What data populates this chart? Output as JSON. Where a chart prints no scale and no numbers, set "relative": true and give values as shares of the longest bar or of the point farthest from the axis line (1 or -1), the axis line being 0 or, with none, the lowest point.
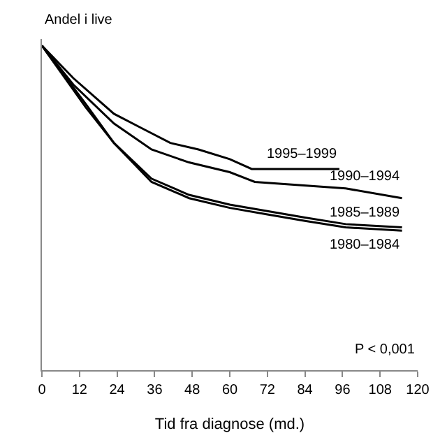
{
  "chart_data": {
    "type": "line",
    "relative": true,
    "ylabel": "Andel i live",
    "xlabel": "Tid fra diagnose (md.)",
    "xlim": [
      0,
      120
    ],
    "xticks": [
      0,
      12,
      24,
      36,
      48,
      60,
      72,
      84,
      96,
      108,
      120
    ],
    "tick_labels": "x",
    "legend": false,
    "marker": "none",
    "line_style": "solid",
    "annotations": [
      "P < 0,001"
    ],
    "series": [
      {
        "name": "1995–1999",
        "color": "#000000",
        "x": [
          0,
          10,
          23,
          31,
          41,
          50,
          60,
          67,
          95
        ],
        "values": [
          1.0,
          0.9,
          0.79,
          0.75,
          0.7,
          0.68,
          0.65,
          0.62,
          0.62
        ]
      },
      {
        "name": "1990–1994",
        "color": "#000000",
        "x": [
          0,
          10,
          23,
          35,
          47,
          60,
          68,
          97,
          115
        ],
        "values": [
          1.0,
          0.88,
          0.76,
          0.68,
          0.64,
          0.61,
          0.58,
          0.56,
          0.53
        ]
      },
      {
        "name": "1985–1989",
        "color": "#000000",
        "x": [
          0,
          14,
          23,
          35,
          47,
          60,
          72,
          84,
          97,
          115
        ],
        "values": [
          1.0,
          0.82,
          0.7,
          0.59,
          0.54,
          0.51,
          0.49,
          0.47,
          0.45,
          0.44
        ]
      },
      {
        "name": "1980–1984",
        "color": "#000000",
        "x": [
          0,
          14,
          23,
          35,
          47,
          60,
          72,
          84,
          97,
          115
        ],
        "values": [
          1.0,
          0.81,
          0.7,
          0.58,
          0.53,
          0.5,
          0.48,
          0.46,
          0.44,
          0.43
        ]
      }
    ]
  }
}
